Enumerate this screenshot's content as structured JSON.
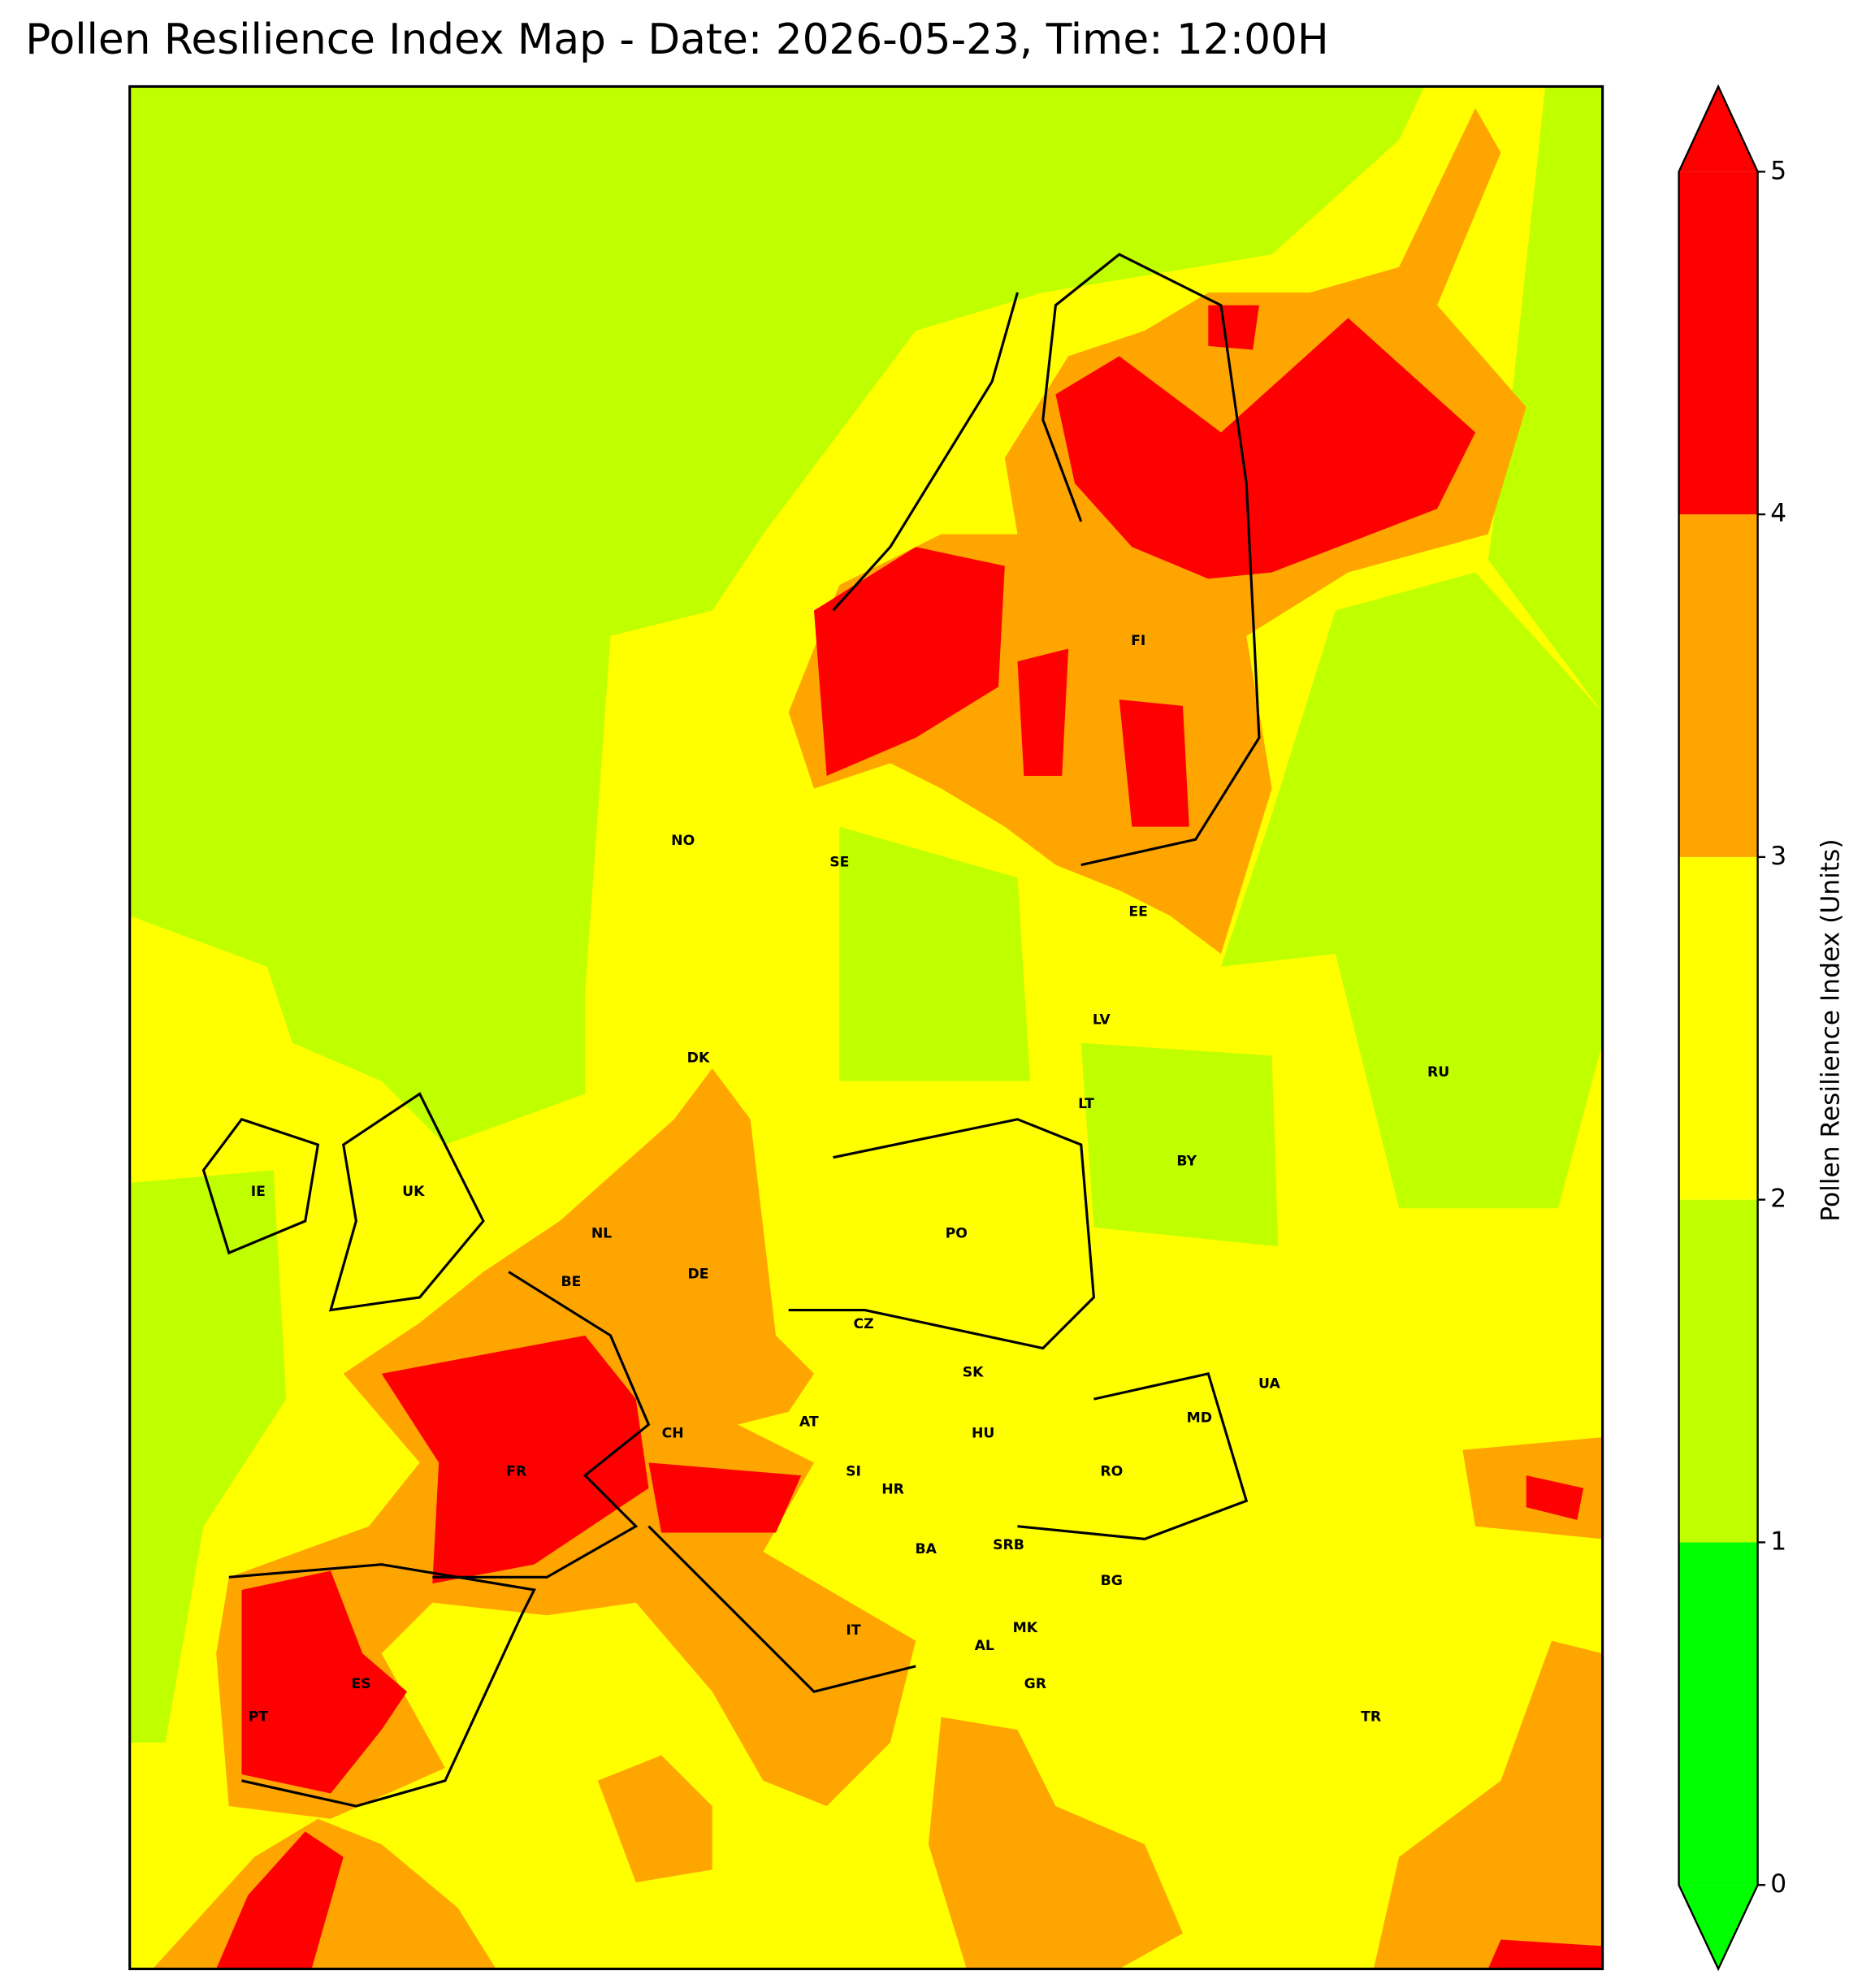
{
  "title": "Pollen Resilience Index Map - Date: 2026-05-23, Time: 12:00H",
  "map": {
    "country_labels": [
      "NO",
      "SE",
      "FI",
      "RU",
      "EE",
      "LV",
      "DK",
      "LT",
      "BY",
      "IE",
      "UK",
      "NL",
      "PO",
      "BE",
      "DE",
      "CZ",
      "SK",
      "UA",
      "MD",
      "AT",
      "CH",
      "HU",
      "RO",
      "FR",
      "SI",
      "HR",
      "BA",
      "SRB",
      "BG",
      "IT",
      "MK",
      "AL",
      "ES",
      "GR",
      "PT",
      "TR"
    ]
  },
  "colorbar": {
    "label": "Pollen Resilience Index (Units)",
    "range": [
      0,
      5
    ],
    "ticks": [
      0,
      1,
      2,
      3,
      4,
      5
    ],
    "colors": [
      "#00ff00",
      "#bfff00",
      "#ffff00",
      "#ffa500",
      "#ff0000"
    ],
    "extend": "both"
  }
}
